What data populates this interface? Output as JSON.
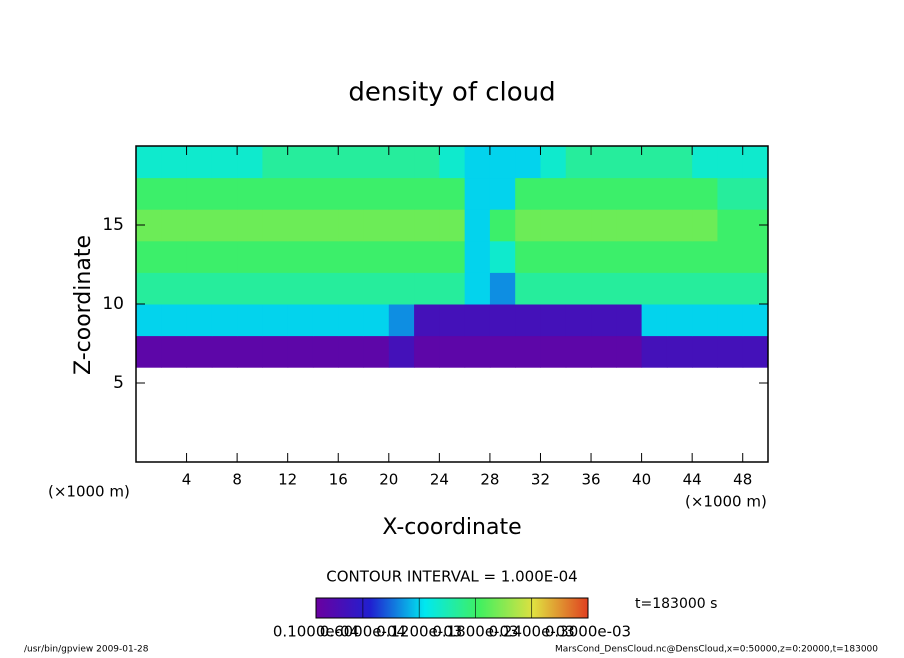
{
  "chart_data": {
    "type": "heatmap",
    "title": "density of cloud",
    "x_label": "X-coordinate",
    "y_label": "Z-coordinate",
    "x_unit": "(×1000 m)",
    "x": [
      1,
      3,
      5,
      7,
      9,
      11,
      13,
      15,
      17,
      19,
      21,
      23,
      25,
      27,
      29,
      31,
      33,
      35,
      37,
      39,
      41,
      43,
      45,
      47,
      49
    ],
    "y": [
      1,
      3,
      5,
      7,
      9,
      11,
      13,
      15,
      17,
      19
    ],
    "z": [
      [
        null,
        null,
        null,
        null,
        null,
        null,
        null,
        null,
        null,
        null,
        null,
        null,
        null,
        null,
        null,
        null,
        null,
        null,
        null,
        null,
        null,
        null,
        null,
        null,
        null
      ],
      [
        null,
        null,
        null,
        null,
        null,
        null,
        null,
        null,
        null,
        null,
        null,
        null,
        null,
        null,
        null,
        null,
        null,
        null,
        null,
        null,
        null,
        null,
        null,
        null,
        null
      ],
      [
        null,
        null,
        null,
        null,
        null,
        null,
        null,
        null,
        null,
        null,
        null,
        null,
        null,
        null,
        null,
        null,
        null,
        null,
        null,
        null,
        null,
        null,
        null,
        null,
        null
      ],
      [
        2e-05,
        2e-05,
        2e-05,
        2e-05,
        2e-05,
        2e-05,
        2e-05,
        2e-05,
        2e-05,
        2e-05,
        4e-05,
        2e-05,
        2e-05,
        2e-05,
        2e-05,
        2e-05,
        2e-05,
        2e-05,
        2e-05,
        2e-05,
        4e-05,
        4e-05,
        4e-05,
        4e-05,
        4e-05
      ],
      [
        0.00012,
        0.00012,
        0.00012,
        0.00012,
        0.00012,
        0.00012,
        0.00012,
        0.00012,
        0.00012,
        0.00012,
        0.0001,
        4e-05,
        4e-05,
        4e-05,
        4e-05,
        4e-05,
        4e-05,
        4e-05,
        4e-05,
        4e-05,
        0.00012,
        0.00012,
        0.00012,
        0.00012,
        0.00012
      ],
      [
        0.00016,
        0.00016,
        0.00016,
        0.00016,
        0.00016,
        0.00016,
        0.00016,
        0.00016,
        0.00016,
        0.00016,
        0.00016,
        0.00016,
        0.00016,
        0.00012,
        0.0001,
        0.00016,
        0.00016,
        0.00016,
        0.00016,
        0.00016,
        0.00016,
        0.00016,
        0.00016,
        0.00016,
        0.00016
      ],
      [
        0.00018,
        0.00018,
        0.00018,
        0.00018,
        0.00018,
        0.00018,
        0.00018,
        0.00018,
        0.00018,
        0.00018,
        0.00018,
        0.00018,
        0.00018,
        0.00012,
        0.00014,
        0.00018,
        0.00018,
        0.00018,
        0.00018,
        0.00018,
        0.00018,
        0.00018,
        0.00018,
        0.00018,
        0.00018
      ],
      [
        0.0002,
        0.0002,
        0.0002,
        0.0002,
        0.0002,
        0.0002,
        0.0002,
        0.0002,
        0.0002,
        0.0002,
        0.0002,
        0.0002,
        0.0002,
        0.00012,
        0.00018,
        0.0002,
        0.0002,
        0.0002,
        0.0002,
        0.0002,
        0.0002,
        0.0002,
        0.0002,
        0.00018,
        0.00018
      ],
      [
        0.00018,
        0.00018,
        0.00018,
        0.00018,
        0.00018,
        0.00018,
        0.00018,
        0.00018,
        0.00018,
        0.00018,
        0.00018,
        0.00018,
        0.00018,
        0.00012,
        0.00012,
        0.00018,
        0.00018,
        0.00018,
        0.00018,
        0.00018,
        0.00018,
        0.00018,
        0.00018,
        0.00016,
        0.00016
      ],
      [
        0.00014,
        0.00014,
        0.00014,
        0.00014,
        0.00014,
        0.00016,
        0.00016,
        0.00016,
        0.00016,
        0.00016,
        0.00016,
        0.00016,
        0.00014,
        0.00012,
        0.00012,
        0.00012,
        0.00014,
        0.00016,
        0.00016,
        0.00016,
        0.00016,
        0.00016,
        0.00014,
        0.00014,
        0.00014
      ]
    ],
    "xlim": [
      0,
      50
    ],
    "ylim": [
      0,
      20
    ],
    "xticks": [
      4,
      8,
      12,
      16,
      20,
      24,
      28,
      32,
      36,
      40,
      44,
      48
    ],
    "yticks": [
      5,
      10,
      15
    ],
    "clim": [
      1e-05,
      0.0003
    ],
    "colormap": [
      "#6a00a0",
      "#2020d0",
      "#00e8f0",
      "#40f060",
      "#e0e040",
      "#e04020"
    ],
    "colorbar_ticks": [
      {
        "value": 1e-05,
        "label": "0.1000e-04"
      },
      {
        "value": 6e-05,
        "label": "0.6000e-04"
      },
      {
        "value": 0.00012,
        "label": "0.1200e-03"
      },
      {
        "value": 0.00018,
        "label": "0.1800e-03"
      },
      {
        "value": 0.00024,
        "label": "0.2400e-03"
      },
      {
        "value": 0.0003,
        "label": "0.3000e-03"
      }
    ],
    "contour_interval": "CONTOUR INTERVAL = 1.000E-04",
    "time_label": "t=183000 s",
    "footer_left": "/usr/bin/gpview   2009-01-28",
    "footer_right": "MarsCond_DensCloud.nc@DensCloud,x=0:50000,z=0:20000,t=183000"
  }
}
